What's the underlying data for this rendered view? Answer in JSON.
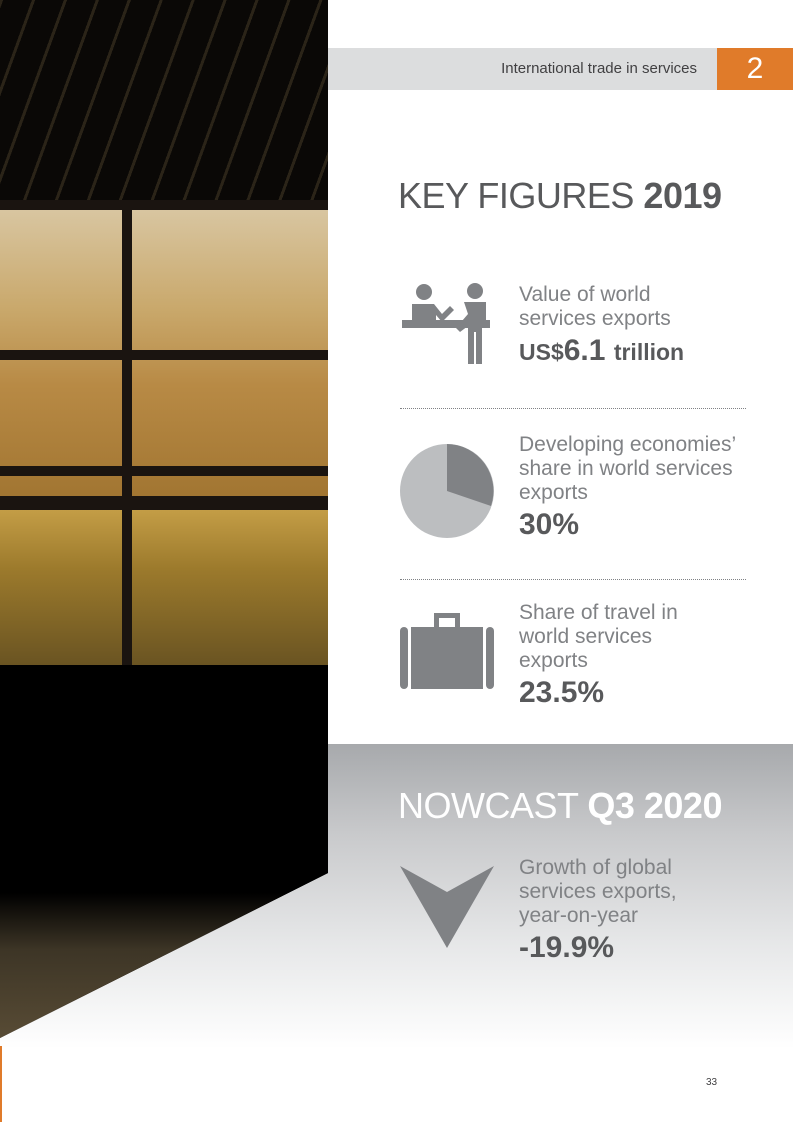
{
  "header": {
    "section_title": "International trade in services",
    "chapter_number": "2"
  },
  "key_figures": {
    "title_light": "KEY FIGURES",
    "title_bold": "2019",
    "items": [
      {
        "icon": "service-desk-icon",
        "label": "Value of world services exports",
        "value_prefix": "US$",
        "value": "6.1",
        "value_suffix": "trillion"
      },
      {
        "icon": "pie-chart-icon",
        "label": "Developing economies’ share in world services exports",
        "value": "30%"
      },
      {
        "icon": "suitcase-icon",
        "label": "Share of travel in world services exports",
        "value": "23.5%"
      }
    ]
  },
  "nowcast": {
    "title_light": "NOWCAST",
    "title_bold": "Q3 2020",
    "icon": "down-arrow-icon",
    "label": "Growth of global services exports, year-on-year",
    "value": "-19.9%"
  },
  "colors": {
    "accent": "#e07b2a",
    "icon_gray": "#808285"
  },
  "page_number": "33"
}
